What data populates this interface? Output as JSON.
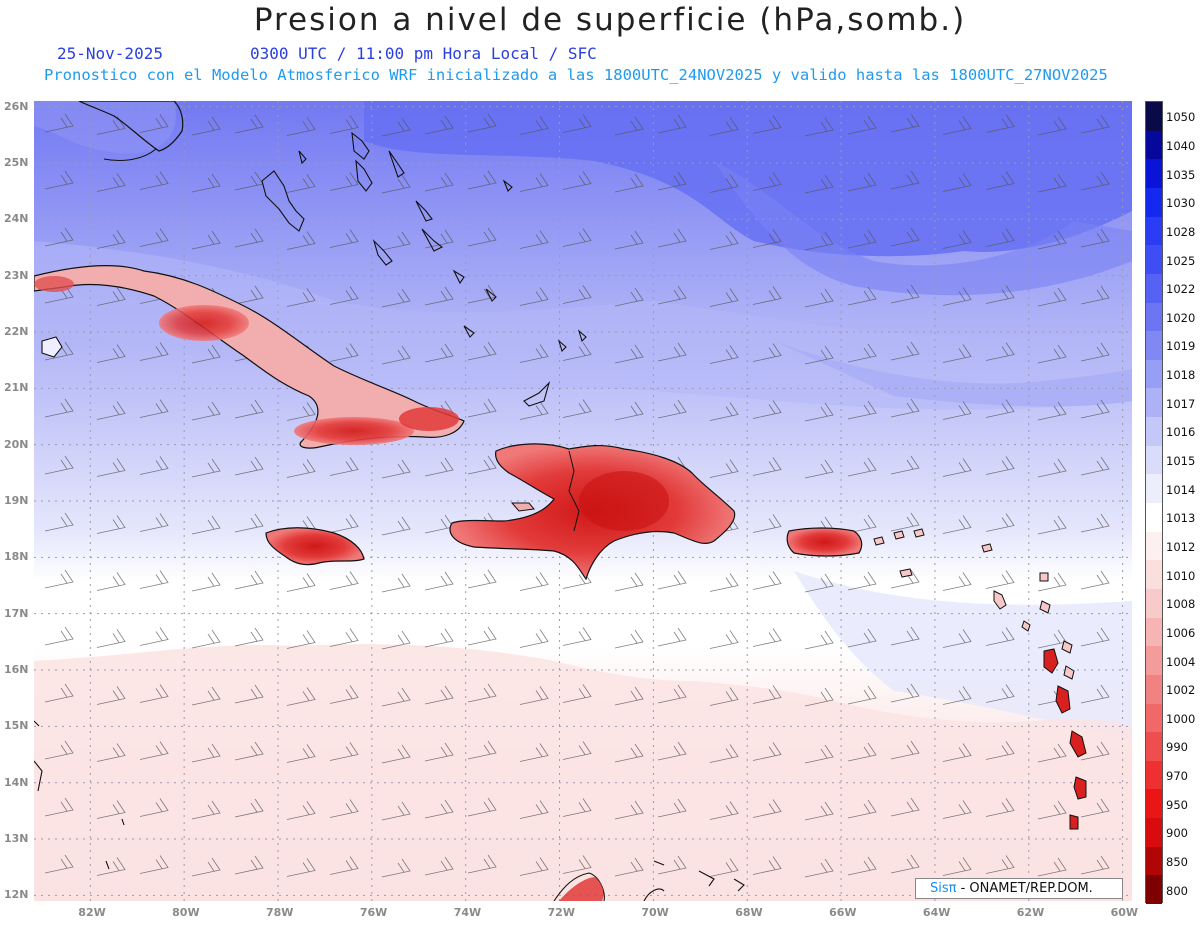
{
  "header": {
    "title": "Presion a nivel de superficie (hPa,somb.)",
    "date": "25-Nov-2025",
    "valid_time": "0300 UTC / 11:00 pm Hora Local / SFC",
    "model_line": "Pronostico con el Modelo Atmosferico WRF inicializado a las 1800UTC_24NOV2025 y valido hasta las  1800UTC_27NOV2025"
  },
  "map": {
    "projection": "lat-lon",
    "lon_range": [
      -83.2,
      -59.8
    ],
    "lat_range": [
      11.9,
      26.1
    ],
    "gridlines": "dotted",
    "wind_barbs": true,
    "lon_labels": [
      "82W",
      "80W",
      "78W",
      "76W",
      "74W",
      "72W",
      "70W",
      "68W",
      "66W",
      "64W",
      "62W",
      "60W"
    ],
    "lat_labels": [
      "26N",
      "25N",
      "24N",
      "23N",
      "22N",
      "21N",
      "20N",
      "19N",
      "18N",
      "17N",
      "16N",
      "15N",
      "14N",
      "13N",
      "12N"
    ],
    "colors": {
      "ocean_high": "#6f76f2",
      "ocean_mid": "#b9bcf7",
      "ocean_low": "#dcdefa",
      "neutral": "#ffffff",
      "south_pink": "#fbe2e2",
      "land_high": "#e03030"
    }
  },
  "colorbar": {
    "labels": [
      "1050",
      "1040",
      "1035",
      "1030",
      "1028",
      "1025",
      "1022",
      "1020",
      "1019",
      "1018",
      "1017",
      "1016",
      "1015",
      "1014",
      "1013",
      "1012",
      "1010",
      "1008",
      "1006",
      "1004",
      "1002",
      "1000",
      "990",
      "970",
      "950",
      "900",
      "850",
      "800"
    ],
    "colors": [
      "#0a0a4a",
      "#06089c",
      "#0a14d8",
      "#1428f0",
      "#2a3cf4",
      "#3e4ef4",
      "#5662f4",
      "#6c76f2",
      "#8088f4",
      "#979ef6",
      "#adb2f7",
      "#c4c8f9",
      "#dadcfb",
      "#eceefc",
      "#ffffff",
      "#fdf0f0",
      "#fbdede",
      "#f9caca",
      "#f6b4b4",
      "#f49c9c",
      "#f28282",
      "#f06868",
      "#ee4e4e",
      "#ee3030",
      "#ea1616",
      "#d80c0c",
      "#b00606",
      "#7e0000"
    ]
  },
  "credit": {
    "brand": "Sisπ",
    "text": "- ONAMET/REP.DOM."
  }
}
